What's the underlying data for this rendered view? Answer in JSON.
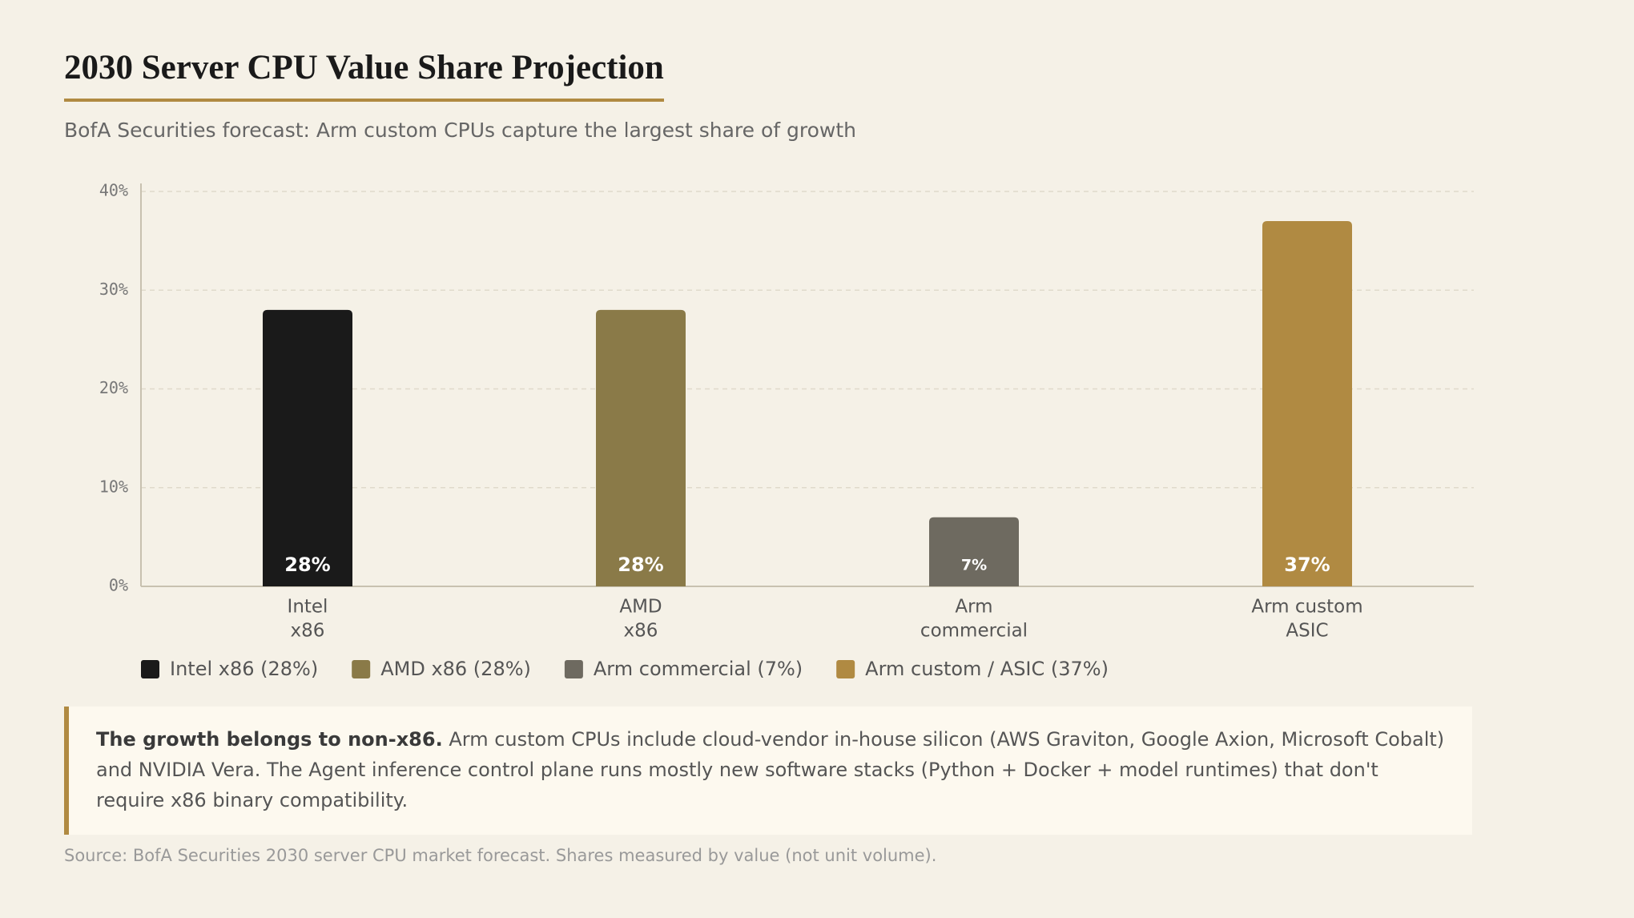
{
  "chart_data": {
    "type": "bar",
    "title": "2030 Server CPU Value Share Projection",
    "subtitle": "BofA Securities forecast: Arm custom CPUs capture the largest share of growth",
    "categories": [
      [
        "Intel",
        "x86"
      ],
      [
        "AMD",
        "x86"
      ],
      [
        "Arm",
        "commercial"
      ],
      [
        "Arm custom",
        "ASIC"
      ]
    ],
    "values": [
      28,
      28,
      7,
      37
    ],
    "value_labels": [
      "28%",
      "28%",
      "7%",
      "37%"
    ],
    "colors": [
      "#1a1a1a",
      "#8a7a48",
      "#6e6a60",
      "#b08a42"
    ],
    "legend": [
      "Intel x86 (28%)",
      "AMD x86 (28%)",
      "Arm commercial (7%)",
      "Arm custom / ASIC (37%)"
    ],
    "ylim": [
      0,
      40
    ],
    "yticks": [
      {
        "value": 0,
        "label": "0%"
      },
      {
        "value": 10,
        "label": "10%"
      },
      {
        "value": 20,
        "label": "20%"
      },
      {
        "value": 30,
        "label": "30%"
      },
      {
        "value": 40,
        "label": "40%"
      }
    ],
    "grid": true
  },
  "note": {
    "lead": "The growth belongs to non-x86.",
    "text": "Arm custom CPUs include cloud-vendor in-house silicon (AWS Graviton, Google Axion, Microsoft Cobalt) and NVIDIA Vera. The Agent inference control plane runs mostly new software stacks (Python + Docker + model runtimes) that don't require x86 binary compatibility."
  },
  "source": "Source: BofA Securities 2030 server CPU market forecast. Shares measured by value (not unit volume)."
}
